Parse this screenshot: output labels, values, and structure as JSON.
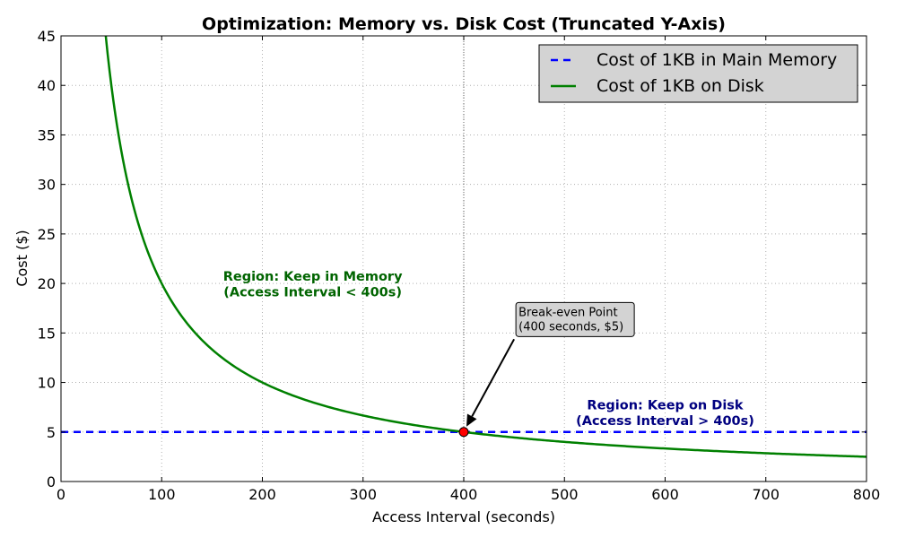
{
  "chart_data": {
    "type": "line",
    "title": "Optimization: Memory vs. Disk Cost (Truncated Y-Axis)",
    "xlabel": "Access Interval (seconds)",
    "ylabel": "Cost ($)",
    "xlim": [
      0,
      800
    ],
    "ylim": [
      0,
      45
    ],
    "xticks": [
      0,
      100,
      200,
      300,
      400,
      500,
      600,
      700,
      800
    ],
    "yticks": [
      0,
      5,
      10,
      15,
      20,
      25,
      30,
      35,
      40,
      45
    ],
    "grid": true,
    "legend_position": "top-right",
    "series": [
      {
        "name": "Cost of 1KB in Main Memory",
        "style": "dashed",
        "color": "#0000ff",
        "formula": "y = 5",
        "value": 5
      },
      {
        "name": "Cost of 1KB on Disk",
        "style": "solid",
        "color": "#008000",
        "formula": "y = 2000 / x",
        "numerator": 2000
      }
    ],
    "break_even": {
      "x": 400,
      "y": 5,
      "label_line1": "Break-even Point",
      "label_line2": "(400 seconds, $5)",
      "text_anchor_x": 450,
      "text_anchor_y": 15,
      "color": "#ff0000"
    },
    "annotations": [
      {
        "id": "memory",
        "line1": "Region: Keep in Memory",
        "line2": "(Access Interval < 400s)",
        "x": 250,
        "y": 19.5,
        "color": "#006400"
      },
      {
        "id": "disk",
        "line1": "Region: Keep on Disk",
        "line2": "(Access Interval > 400s)",
        "x": 600,
        "y": 6.5,
        "color": "#000080"
      }
    ]
  }
}
